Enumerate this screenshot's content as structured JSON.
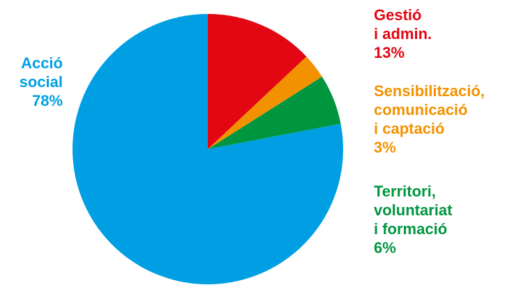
{
  "chart_data": {
    "type": "pie",
    "title": "",
    "slices": [
      {
        "key": "gestio",
        "label_lines": [
          "Gestió",
          "i admin."
        ],
        "value_label": "13%",
        "value": 13,
        "color": "#e30613"
      },
      {
        "key": "sensibilitzacio",
        "label_lines": [
          "Sensibilització,",
          "comunicació",
          "i captació"
        ],
        "value_label": "3%",
        "value": 3,
        "color": "#f39200"
      },
      {
        "key": "territori",
        "label_lines": [
          "Territori,",
          "voluntariat",
          "i formació"
        ],
        "value_label": "6%",
        "value": 6,
        "color": "#009640"
      },
      {
        "key": "accio",
        "label_lines": [
          "Acció",
          "social"
        ],
        "value_label": "78%",
        "value": 78,
        "color": "#009fe3"
      }
    ]
  }
}
